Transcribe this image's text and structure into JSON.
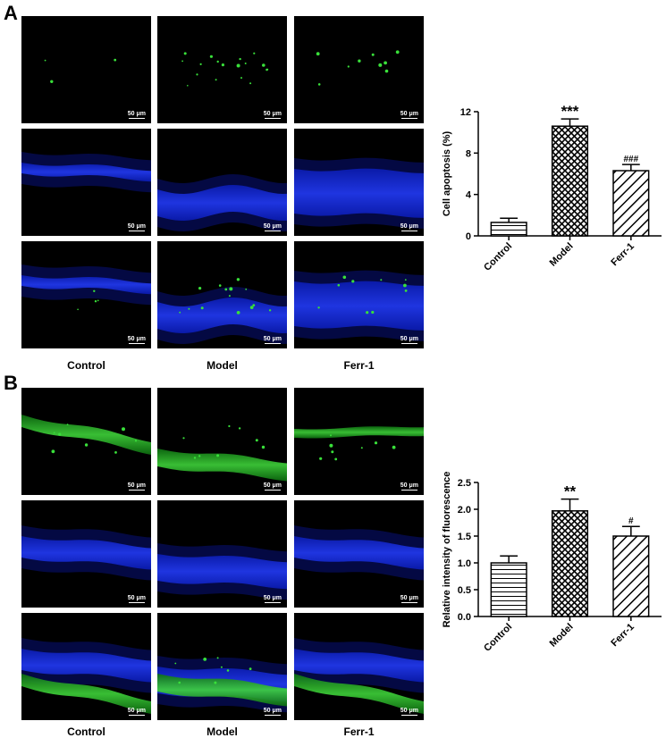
{
  "panels": [
    {
      "letter": "A",
      "columns": [
        "Control",
        "Model",
        "Ferr-1"
      ],
      "scale_bar": "50 μm",
      "rows": [
        [
          "green-sparse",
          "green-spots",
          "green-faint"
        ],
        [
          "blue-thin",
          "blue-wave",
          "blue-thick"
        ],
        [
          "merge-thin",
          "merge-wave",
          "merge-thick"
        ]
      ]
    },
    {
      "letter": "B",
      "columns": [
        "Control",
        "Model",
        "Ferr-1"
      ],
      "scale_bar": "50 μm",
      "rows": [
        [
          "green-band",
          "green-band-low",
          "green-band-dots"
        ],
        [
          "blue-band",
          "blue-band-low",
          "blue-band"
        ],
        [
          "merge-band",
          "merge-band-low",
          "merge-band"
        ]
      ]
    }
  ],
  "chart_data": [
    {
      "type": "bar",
      "categories": [
        "Control",
        "Model",
        "Ferr-1"
      ],
      "values": [
        1.3,
        10.6,
        6.3
      ],
      "errors": [
        0.4,
        0.7,
        0.6
      ],
      "ylabel": "Cell apoptosis (%)",
      "ylim": [
        0,
        12
      ],
      "yticks": [
        "0",
        "4",
        "8",
        "12"
      ],
      "significance": [
        "",
        "***",
        "###"
      ],
      "patterns": [
        "horizontal-lines",
        "crosshatch",
        "diagonal-lines"
      ]
    },
    {
      "type": "bar",
      "categories": [
        "Control",
        "Model",
        "Ferr-1"
      ],
      "values": [
        1.0,
        1.97,
        1.5
      ],
      "errors": [
        0.13,
        0.22,
        0.18
      ],
      "ylabel": "Relative intensity of fluorescence",
      "ylim": [
        0,
        2.5
      ],
      "yticks": [
        "0.0",
        "0.5",
        "1.0",
        "1.5",
        "2.0",
        "2.5"
      ],
      "significance": [
        "",
        "**",
        "#"
      ],
      "patterns": [
        "horizontal-lines",
        "crosshatch",
        "diagonal-lines"
      ]
    }
  ]
}
